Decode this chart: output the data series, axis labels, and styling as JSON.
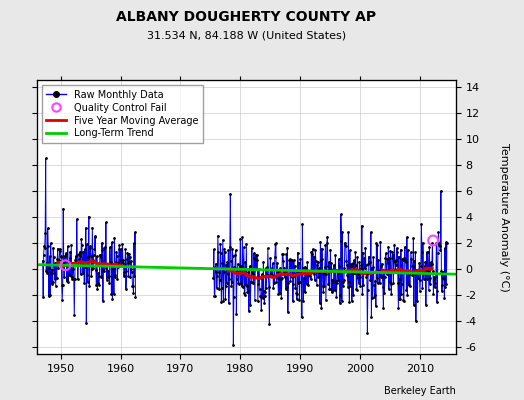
{
  "title": "ALBANY DOUGHERTY COUNTY AP",
  "subtitle": "31.534 N, 84.188 W (United States)",
  "ylabel": "Temperature Anomaly (°C)",
  "credit": "Berkeley Earth",
  "xlim": [
    1946,
    2016
  ],
  "ylim": [
    -6.5,
    14.5
  ],
  "yticks": [
    -6,
    -4,
    -2,
    0,
    2,
    4,
    6,
    8,
    10,
    12,
    14
  ],
  "xticks": [
    1950,
    1960,
    1970,
    1980,
    1990,
    2000,
    2010
  ],
  "bg_color": "#e8e8e8",
  "plot_bg_color": "#ffffff",
  "line_color": "#0000ee",
  "ma_color": "#dd0000",
  "trend_color": "#00cc00",
  "qc_color": "#ff44ff",
  "seed": 17,
  "seg1_start": 1947.0,
  "seg1_end": 1962.5,
  "seg2_start": 1975.5,
  "seg2_end": 2014.5,
  "seg1_spike_year": 1947.5,
  "seg1_spike_val": 8.5,
  "seg1_qc_year": 1950.8,
  "seg1_qc_val": 0.3,
  "seg2_spike_year": 1978.3,
  "seg2_spike_val": 5.8,
  "seg2_qc_year": 2012.2,
  "seg2_qc_val": 2.2,
  "last_spike_year": 2013.5,
  "last_spike_val": 6.0
}
